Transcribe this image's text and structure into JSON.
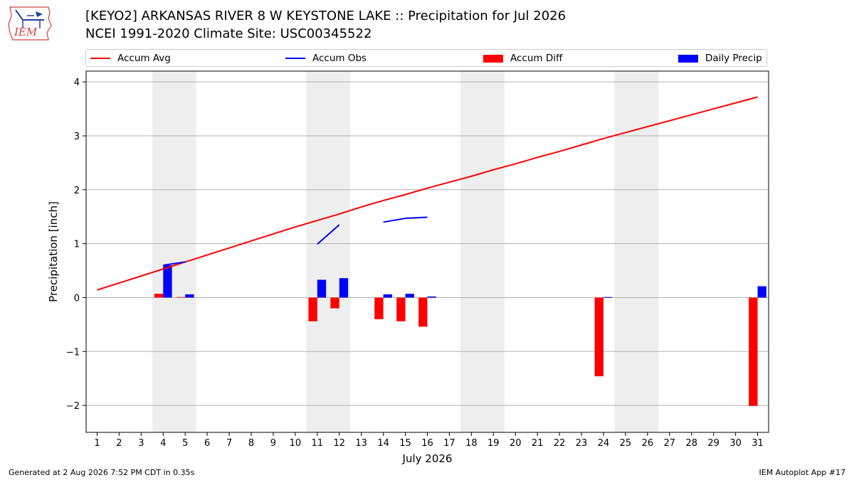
{
  "header": {
    "title_line1": "[KEYO2] ARKANSAS RIVER 8 W KEYSTONE LAKE :: Precipitation for Jul 2026",
    "title_line2": "NCEI 1991-2020 Climate Site: USC00345522",
    "logo_text": "IEM"
  },
  "legend": {
    "accum_avg": "Accum Avg",
    "accum_obs": "Accum Obs",
    "accum_diff": "Accum Diff",
    "daily_precip": "Daily Precip"
  },
  "footer": {
    "left": "Generated at 2 Aug 2026 7:52 PM CDT in 0.35s",
    "right": "IEM Autoplot App #17"
  },
  "colors": {
    "avg": "#ff0000",
    "obs": "#0000ff",
    "diff": "#ff0000",
    "precip": "#0000ff",
    "weekend_shade": "#eeeeee",
    "grid": "#b0b0b0"
  },
  "chart_data": {
    "type": "bar",
    "xlabel": "July 2026",
    "ylabel": "Precipitation [inch]",
    "x": [
      1,
      2,
      3,
      4,
      5,
      6,
      7,
      8,
      9,
      10,
      11,
      12,
      13,
      14,
      15,
      16,
      17,
      18,
      19,
      20,
      21,
      22,
      23,
      24,
      25,
      26,
      27,
      28,
      29,
      30,
      31
    ],
    "xlim": [
      0.5,
      31.5
    ],
    "ylim": [
      -2.5,
      4.2
    ],
    "yticks": [
      -2,
      -1,
      0,
      1,
      2,
      3,
      4
    ],
    "shaded_days": [
      [
        3.5,
        5.5
      ],
      [
        10.5,
        12.5
      ],
      [
        17.5,
        19.5
      ],
      [
        24.5,
        26.5
      ]
    ],
    "grid": "horizontal",
    "legend_position": "top",
    "series": [
      {
        "name": "Accum Avg",
        "kind": "line",
        "values": [
          0.14,
          0.27,
          0.4,
          0.53,
          0.66,
          0.79,
          0.92,
          1.05,
          1.18,
          1.31,
          1.43,
          1.55,
          1.68,
          1.8,
          1.91,
          2.03,
          2.14,
          2.25,
          2.37,
          2.48,
          2.6,
          2.71,
          2.83,
          2.95,
          3.06,
          3.17,
          3.28,
          3.39,
          3.5,
          3.61,
          3.72
        ]
      },
      {
        "name": "Accum Obs",
        "kind": "line",
        "values": [
          null,
          null,
          null,
          0.6,
          0.66,
          null,
          null,
          null,
          null,
          null,
          0.99,
          1.35,
          null,
          1.4,
          1.47,
          1.49,
          null,
          null,
          null,
          null,
          null,
          null,
          null,
          null,
          null,
          null,
          null,
          null,
          null,
          null,
          null
        ]
      },
      {
        "name": "Accum Diff",
        "kind": "bar",
        "values": [
          null,
          null,
          null,
          0.07,
          0.01,
          null,
          null,
          null,
          null,
          null,
          -0.44,
          -0.2,
          null,
          -0.4,
          -0.44,
          -0.54,
          null,
          null,
          null,
          null,
          null,
          null,
          null,
          -1.46,
          null,
          null,
          null,
          null,
          null,
          null,
          -2.01
        ]
      },
      {
        "name": "Daily Precip",
        "kind": "bar",
        "values": [
          null,
          null,
          null,
          0.6,
          0.06,
          null,
          null,
          null,
          null,
          null,
          0.33,
          0.36,
          null,
          0.06,
          0.07,
          0.02,
          null,
          null,
          null,
          null,
          null,
          null,
          null,
          0.01,
          null,
          null,
          null,
          null,
          null,
          null,
          0.21
        ]
      }
    ]
  }
}
